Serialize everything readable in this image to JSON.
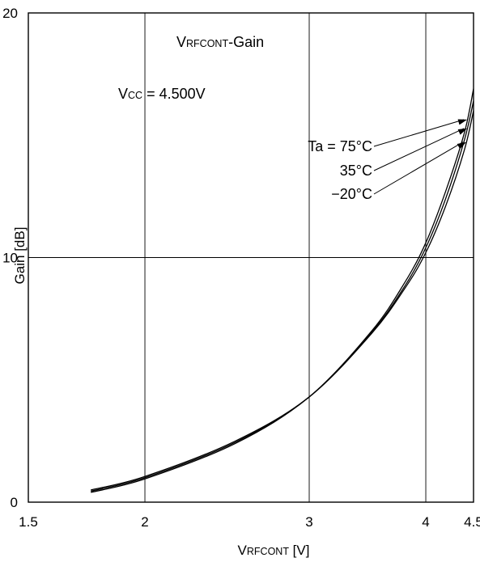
{
  "chart_data": {
    "type": "line",
    "title": {
      "v": "V",
      "sub": "RFCONT",
      "rest": "-Gain"
    },
    "condition": {
      "v": "V",
      "sub": "CC",
      "rest": " = 4.500V"
    },
    "xlabel": {
      "v": "V",
      "sub": "RFCONT",
      "rest": " [V]"
    },
    "ylabel": "Gain [dB]",
    "xlim": [
      1.5,
      4.5
    ],
    "ylim": [
      0,
      20
    ],
    "x_ticks": [
      1.5,
      2,
      3,
      4,
      4.5
    ],
    "x_tick_labels": [
      "1.5",
      "2",
      "3",
      "4",
      "4.5"
    ],
    "y_ticks": [
      0,
      10,
      20
    ],
    "y_tick_labels": [
      "0",
      "10",
      "20"
    ],
    "grid": true,
    "series": [
      {
        "name": "Ta = 75°C",
        "x": [
          1.75,
          2.0,
          2.5,
          3.0,
          3.5,
          3.8,
          4.0,
          4.2,
          4.4,
          4.5
        ],
        "y": [
          0.4,
          0.95,
          2.4,
          4.3,
          7.0,
          9.0,
          10.6,
          12.7,
          15.1,
          16.9
        ]
      },
      {
        "name": "35°C",
        "x": [
          1.75,
          2.0,
          2.5,
          3.0,
          3.5,
          3.8,
          4.0,
          4.2,
          4.4,
          4.5
        ],
        "y": [
          0.45,
          1.0,
          2.45,
          4.3,
          6.95,
          8.85,
          10.4,
          12.4,
          14.8,
          16.4
        ]
      },
      {
        "name": "−20°C",
        "x": [
          1.75,
          2.0,
          2.5,
          3.0,
          3.5,
          3.8,
          4.0,
          4.2,
          4.4,
          4.5
        ],
        "y": [
          0.5,
          1.05,
          2.5,
          4.3,
          6.9,
          8.75,
          10.2,
          12.1,
          14.4,
          16.0
        ]
      }
    ],
    "annotations": [
      {
        "label": "Ta = 75°C",
        "series": 0,
        "x": 4.43
      },
      {
        "label": "35°C",
        "series": 1,
        "x": 4.43
      },
      {
        "label": "−20°C",
        "series": 2,
        "x": 4.42
      }
    ]
  }
}
